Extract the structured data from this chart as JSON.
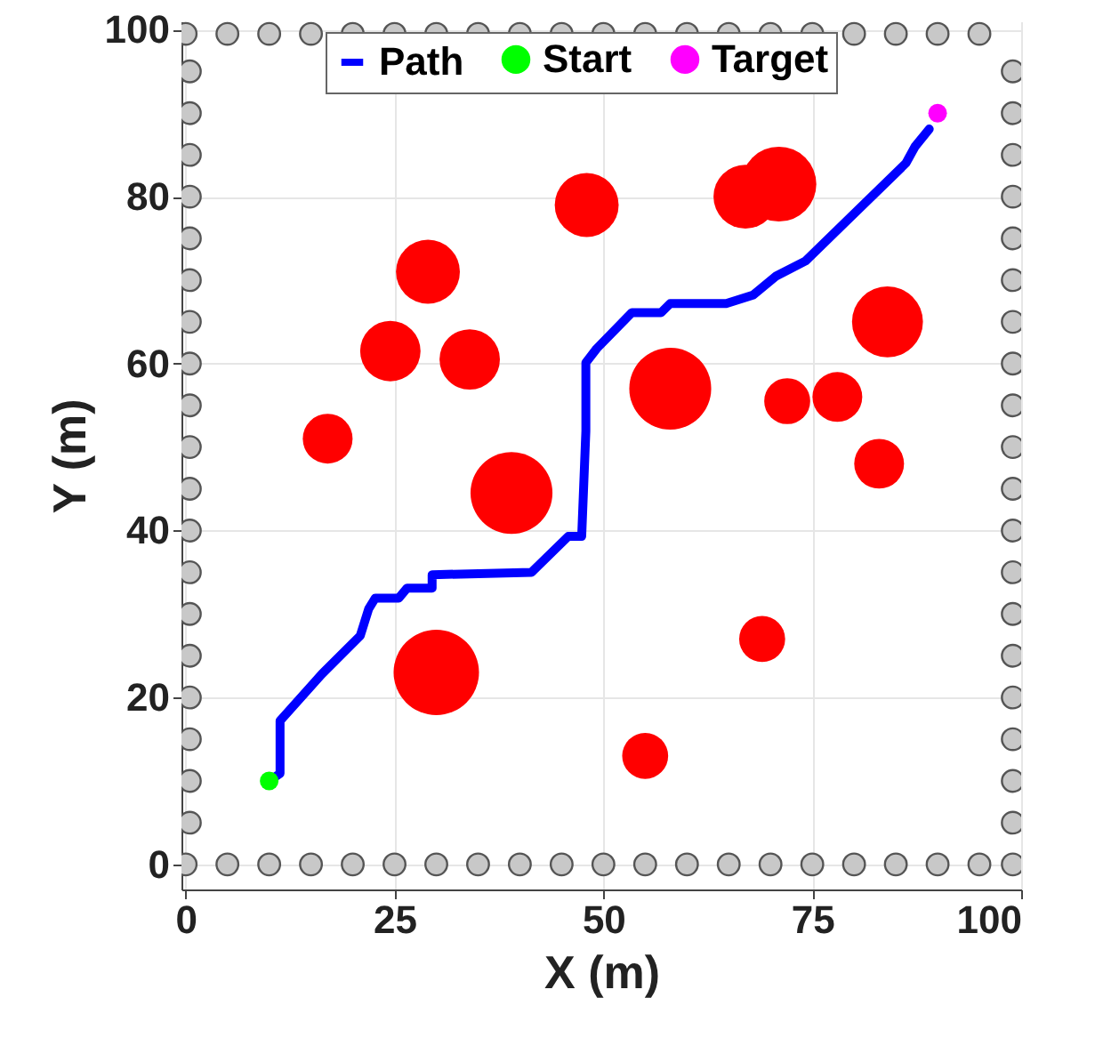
{
  "chart_data": {
    "type": "scatter",
    "xlabel": "X (m)",
    "ylabel": "Y (m)",
    "xlim": [
      -0.5,
      100
    ],
    "ylim": [
      -3,
      101
    ],
    "xticks": [
      0,
      25,
      50,
      75,
      100
    ],
    "yticks": [
      0,
      20,
      40,
      60,
      80,
      100
    ],
    "grid": true,
    "legend": "top",
    "series": [
      {
        "color": "#c8c8c8",
        "x": [
          0,
          5,
          10,
          15,
          20,
          25,
          30,
          35,
          40,
          45,
          50,
          55,
          60,
          65,
          70,
          75,
          80,
          85,
          90,
          95,
          0,
          5,
          10,
          15,
          20,
          25,
          30,
          35,
          40,
          45,
          50,
          55,
          60,
          65,
          70,
          75,
          80,
          85,
          90,
          95,
          0.5,
          0.5,
          0.5,
          0.5,
          0.5,
          0.5,
          0.5,
          0.5,
          0.5,
          0.5,
          0.5,
          0.5,
          0.5,
          0.5,
          0.5,
          0.5,
          0.5,
          0.5,
          0.5,
          99,
          99,
          99,
          99,
          99,
          99,
          99,
          99,
          99,
          99,
          99,
          99,
          99,
          99,
          99,
          99,
          99,
          99,
          99,
          99
        ],
        "values": [
          0,
          0,
          0,
          0,
          0,
          0,
          0,
          0,
          0,
          0,
          0,
          0,
          0,
          0,
          0,
          0,
          0,
          0,
          0,
          0,
          99.5,
          99.5,
          99.5,
          99.5,
          99.5,
          99.5,
          99.5,
          99.5,
          99.5,
          99.5,
          99.5,
          99.5,
          99.5,
          99.5,
          99.5,
          99.5,
          99.5,
          99.5,
          99.5,
          99.5,
          5,
          10,
          15,
          20,
          25,
          30,
          35,
          40,
          45,
          50,
          55,
          60,
          65,
          70,
          75,
          80,
          85,
          90,
          95,
          0,
          5,
          10,
          15,
          20,
          25,
          30,
          35,
          40,
          45,
          50,
          55,
          60,
          65,
          70,
          75,
          80,
          85,
          90,
          95
        ]
      },
      {
        "type": "bubble",
        "color": "#ff0000",
        "x": [
          17,
          24.5,
          29,
          34,
          39,
          30,
          48,
          55,
          58,
          67,
          71,
          72,
          78,
          84,
          83,
          69
        ],
        "values": [
          51,
          61.5,
          71,
          60.5,
          44.5,
          23,
          79,
          13,
          57,
          80,
          81.5,
          55.5,
          56,
          65,
          48,
          27
        ],
        "sizes": [
          0.34,
          0.5,
          0.56,
          0.5,
          0.92,
          1,
          0.56,
          0.29,
          0.92,
          0.56,
          0.77,
          0.29,
          0.34,
          0.69,
          0.34,
          0.29
        ]
      },
      {
        "type": "line",
        "name": "Path",
        "color": "#0000ff",
        "x": [
          10,
          11.3,
          11.3,
          16.3,
          20.9,
          21.9,
          22.7,
          25.5,
          26.5,
          29.5,
          29.5,
          41.4,
          45.8,
          47.4,
          47.9,
          47.9,
          49.2,
          53.4,
          56.9,
          58,
          64.7,
          67.9,
          70.7,
          74.2,
          86.2,
          87.3,
          89
        ],
        "values": [
          10,
          10.9,
          17.2,
          22.8,
          27.4,
          30.6,
          31.9,
          31.9,
          33.1,
          33.1,
          34.7,
          35,
          39.3,
          39.3,
          51.9,
          60.1,
          61.8,
          66.1,
          66.1,
          67.2,
          67.2,
          68.2,
          70.5,
          72.3,
          84,
          86,
          88.1
        ]
      },
      {
        "name": "Start",
        "color": "#00ff00",
        "x": [
          10
        ],
        "values": [
          10
        ]
      },
      {
        "name": "Target",
        "color": "#ff00ff",
        "x": [
          90
        ],
        "values": [
          90
        ]
      }
    ]
  }
}
